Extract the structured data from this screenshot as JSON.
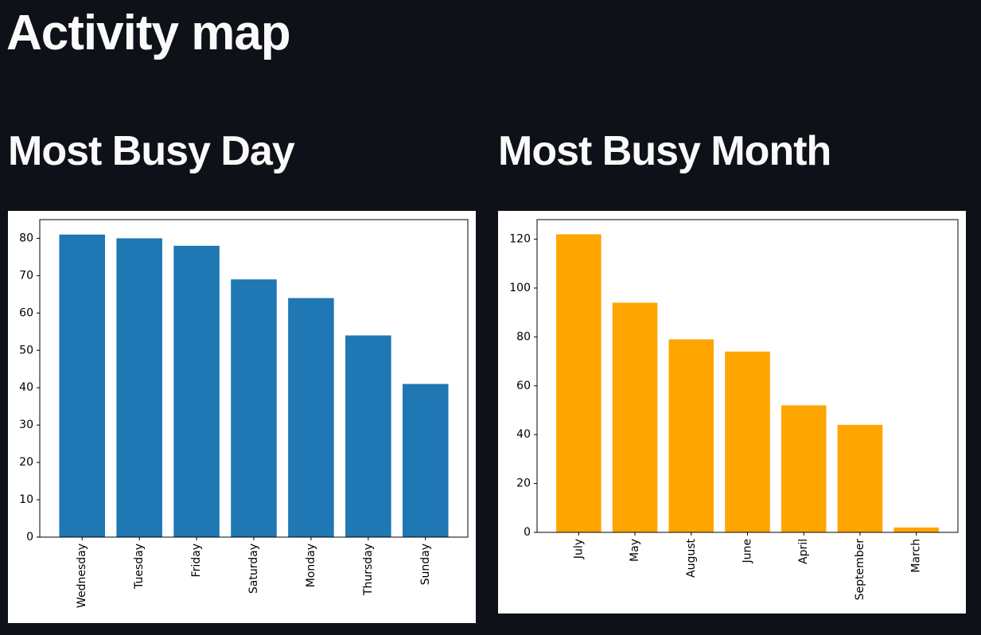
{
  "title": "Activity map",
  "chart_data": [
    {
      "type": "bar",
      "title": "Most Busy Day",
      "categories": [
        "Wednesday",
        "Tuesday",
        "Friday",
        "Saturday",
        "Monday",
        "Thursday",
        "Sunday"
      ],
      "values": [
        81,
        80,
        78,
        69,
        64,
        54,
        41
      ],
      "color": "#1f77b4",
      "ylim": [
        0,
        85
      ],
      "yticks": [
        0,
        10,
        20,
        30,
        40,
        50,
        60,
        70,
        80
      ]
    },
    {
      "type": "bar",
      "title": "Most Busy Month",
      "categories": [
        "July",
        "May",
        "August",
        "June",
        "April",
        "September",
        "March"
      ],
      "values": [
        122,
        94,
        79,
        74,
        52,
        44,
        2
      ],
      "color": "#ffa500",
      "ylim": [
        0,
        128
      ],
      "yticks": [
        0,
        20,
        40,
        60,
        80,
        100,
        120
      ]
    }
  ]
}
